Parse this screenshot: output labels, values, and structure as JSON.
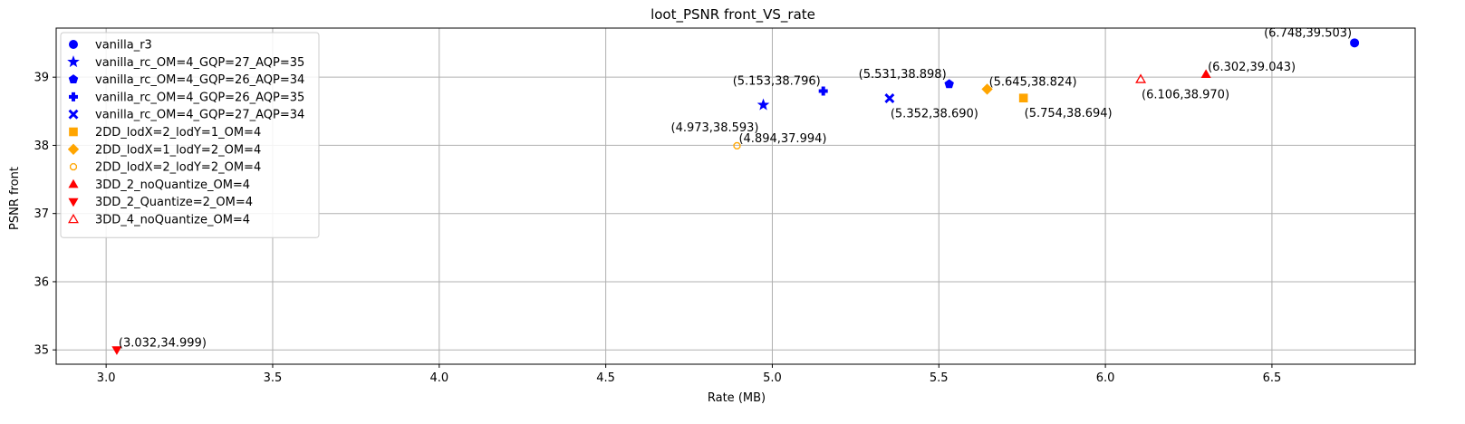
{
  "chart_data": {
    "type": "scatter",
    "title": "loot_PSNR front_VS_rate",
    "xlabel": "Rate (MB)",
    "ylabel": "PSNR front",
    "xlim": [
      2.85,
      6.93
    ],
    "ylim": [
      34.79,
      39.72
    ],
    "xticks": [
      3.0,
      3.5,
      4.0,
      4.5,
      5.0,
      5.5,
      6.0,
      6.5
    ],
    "yticks": [
      35,
      36,
      37,
      38,
      39
    ],
    "grid": true,
    "legend_position": "top-left",
    "series": [
      {
        "name": "vanilla_r3",
        "marker": "circle",
        "color": "#0000ff",
        "filled": true,
        "x": 6.748,
        "y": 39.503,
        "label": "(6.748,39.503)",
        "label_pos": "upper-left"
      },
      {
        "name": "vanilla_rc_OM=4_GQP=27_AQP=35",
        "marker": "star",
        "color": "#0000ff",
        "filled": true,
        "x": 4.973,
        "y": 38.593,
        "label": "(4.973,38.593)",
        "label_pos": "lower-left"
      },
      {
        "name": "vanilla_rc_OM=4_GQP=26_AQP=34",
        "marker": "pentagon",
        "color": "#0000ff",
        "filled": true,
        "x": 5.531,
        "y": 38.898,
        "label": "(5.531,38.898)",
        "label_pos": "upper-left"
      },
      {
        "name": "vanilla_rc_OM=4_GQP=26_AQP=35",
        "marker": "plus",
        "color": "#0000ff",
        "filled": true,
        "x": 5.153,
        "y": 38.796,
        "label": "(5.153,38.796)",
        "label_pos": "upper-left"
      },
      {
        "name": "vanilla_rc_OM=4_GQP=27_AQP=34",
        "marker": "x",
        "color": "#0000ff",
        "filled": true,
        "x": 5.352,
        "y": 38.69,
        "label": "(5.352,38.690)",
        "label_pos": "lower-right"
      },
      {
        "name": "2DD_lodX=2_lodY=1_OM=4",
        "marker": "square",
        "color": "#ffa500",
        "filled": true,
        "x": 5.754,
        "y": 38.694,
        "label": "(5.754,38.694)",
        "label_pos": "lower-right"
      },
      {
        "name": "2DD_lodX=1_lodY=2_OM=4",
        "marker": "diamond",
        "color": "#ffa500",
        "filled": true,
        "x": 5.645,
        "y": 38.824,
        "label": "(5.645,38.824)",
        "label_pos": "upper-right"
      },
      {
        "name": "2DD_lodX=2_lodY=2_OM=4",
        "marker": "octagon",
        "color": "#ffa500",
        "filled": false,
        "x": 4.894,
        "y": 37.994,
        "label": "(4.894,37.994)",
        "label_pos": "upper-right"
      },
      {
        "name": "3DD_2_noQuantize_OM=4",
        "marker": "triangle-up",
        "color": "#ff0000",
        "filled": true,
        "x": 6.302,
        "y": 39.043,
        "label": "(6.302,39.043)",
        "label_pos": "upper-right"
      },
      {
        "name": "3DD_2_Quantize=2_OM=4",
        "marker": "triangle-down",
        "color": "#ff0000",
        "filled": true,
        "x": 3.032,
        "y": 34.999,
        "label": "(3.032,34.999)",
        "label_pos": "upper-right"
      },
      {
        "name": "3DD_4_noQuantize_OM=4",
        "marker": "triangle-up",
        "color": "#ff0000",
        "filled": false,
        "x": 6.106,
        "y": 38.97,
        "label": "(6.106,38.970)",
        "label_pos": "lower-right"
      }
    ]
  }
}
